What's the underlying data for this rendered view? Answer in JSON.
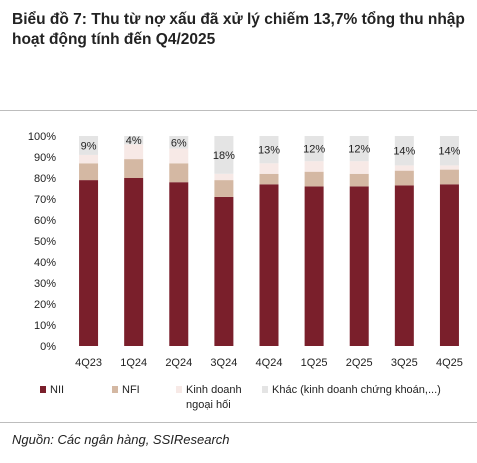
{
  "title": "Biểu đồ 7: Thu từ nợ xấu đã xử lý chiếm 13,7% tổng thu nhập hoạt động tính đến Q4/2025",
  "source": "Nguồn: Các ngân hàng, SSIResearch",
  "colors": {
    "NII": "#7a1f2b",
    "NFI": "#d4b8a3",
    "Kinh doanh ngoại hối": "#f7e9e6",
    "Khác": "#e4e4e4"
  },
  "chart_data": {
    "type": "bar",
    "stacked": true,
    "categories": [
      "4Q23",
      "1Q24",
      "2Q24",
      "3Q24",
      "4Q24",
      "1Q25",
      "2Q25",
      "3Q25",
      "4Q25"
    ],
    "series": [
      {
        "name": "NII",
        "values": [
          79,
          80,
          78,
          71,
          77,
          76,
          76,
          76.5,
          77
        ]
      },
      {
        "name": "NFI",
        "values": [
          8,
          9,
          9,
          8,
          5,
          7,
          6,
          7,
          7
        ]
      },
      {
        "name": "Kinh doanh ngoại hối",
        "values": [
          4,
          7,
          7,
          3,
          5,
          5,
          6,
          2.5,
          2
        ]
      },
      {
        "name": "Khác (kinh doanh chứng khoán,...)",
        "values": [
          9,
          4,
          6,
          18,
          13,
          12,
          12,
          14,
          14
        ]
      }
    ],
    "data_labels": [
      "9%",
      "4%",
      "6%",
      "18%",
      "13%",
      "12%",
      "12%",
      "14%",
      "14%"
    ],
    "y_ticks": [
      "0%",
      "10%",
      "20%",
      "30%",
      "40%",
      "50%",
      "60%",
      "70%",
      "80%",
      "90%",
      "100%"
    ],
    "ylim": [
      0,
      100
    ],
    "legend": {
      "items": [
        "NII",
        "NFI",
        "Kinh doanh ngoại hối",
        "Khác (kinh doanh chứng khoán,...)"
      ],
      "placement": "bottom"
    }
  }
}
